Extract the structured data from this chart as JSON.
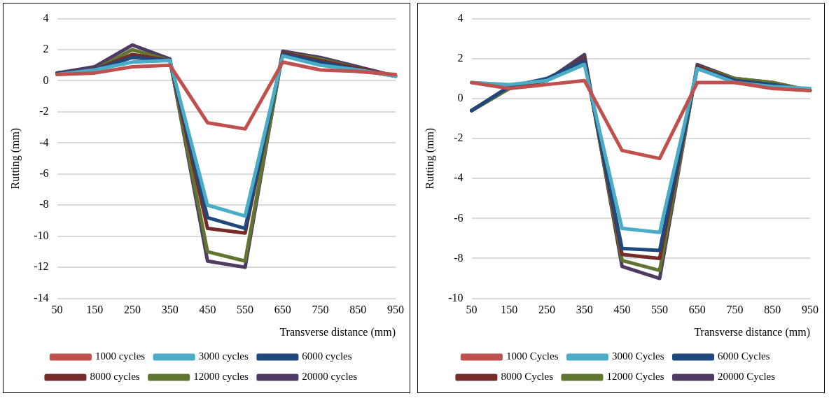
{
  "chart_data": [
    {
      "type": "line",
      "xlabel": "Transverse distance (mm)",
      "ylabel": "Rutting (mm)",
      "categories": [
        "50",
        "150",
        "250",
        "350",
        "450",
        "550",
        "650",
        "750",
        "850",
        "950"
      ],
      "ylim": [
        -14,
        4
      ],
      "yticks": [
        -14,
        -12,
        -10,
        -8,
        -6,
        -4,
        -2,
        0,
        2,
        4
      ],
      "grid": "y",
      "legend": "bottom",
      "marker": "none",
      "line_style": "solid",
      "series": [
        {
          "name": "1000 cycles",
          "color": "#c0504d",
          "values": [
            0.4,
            0.5,
            0.9,
            1.0,
            -2.7,
            -3.1,
            1.2,
            0.7,
            0.6,
            0.4
          ]
        },
        {
          "name": "3000 cycles",
          "color": "#4bacc6",
          "values": [
            0.4,
            0.7,
            1.2,
            1.3,
            -8.0,
            -8.7,
            1.6,
            1.0,
            0.7,
            0.3
          ]
        },
        {
          "name": "6000 cycles",
          "color": "#1f497d",
          "values": [
            0.5,
            0.7,
            1.5,
            1.3,
            -8.8,
            -9.5,
            1.7,
            1.2,
            0.7,
            0.3
          ]
        },
        {
          "name": "8000 cycles",
          "color": "#772c2a",
          "values": [
            0.5,
            0.7,
            1.7,
            1.3,
            -9.5,
            -9.8,
            1.8,
            1.3,
            0.8,
            0.3
          ]
        },
        {
          "name": "12000 cycles",
          "color": "#5f7530",
          "values": [
            0.5,
            0.7,
            2.0,
            1.3,
            -11.0,
            -11.6,
            1.8,
            1.4,
            0.8,
            0.3
          ]
        },
        {
          "name": "20000 cycles",
          "color": "#4f3b62",
          "values": [
            0.5,
            0.9,
            2.3,
            1.4,
            -11.6,
            -12.0,
            1.9,
            1.5,
            0.9,
            0.3
          ]
        }
      ]
    },
    {
      "type": "line",
      "xlabel": "Transverse distance (mm)",
      "ylabel": "Rutting (mm)",
      "categories": [
        "50",
        "150",
        "250",
        "350",
        "450",
        "550",
        "650",
        "750",
        "850",
        "950"
      ],
      "ylim": [
        -10,
        4
      ],
      "yticks": [
        -10,
        -8,
        -6,
        -4,
        -2,
        0,
        2,
        4
      ],
      "grid": "y",
      "legend": "bottom",
      "marker": "none",
      "line_style": "solid",
      "series": [
        {
          "name": "1000 Cycles",
          "color": "#c0504d",
          "values": [
            0.8,
            0.5,
            0.7,
            0.9,
            -2.6,
            -3.0,
            0.8,
            0.8,
            0.5,
            0.4
          ]
        },
        {
          "name": "3000 Cycles",
          "color": "#4bacc6",
          "values": [
            0.8,
            0.7,
            0.9,
            1.7,
            -6.5,
            -6.7,
            1.5,
            0.8,
            0.6,
            0.5
          ]
        },
        {
          "name": "6000 Cycles",
          "color": "#1f497d",
          "values": [
            -0.6,
            0.6,
            1.0,
            1.9,
            -7.5,
            -7.6,
            1.5,
            0.9,
            0.7,
            0.4
          ]
        },
        {
          "name": "8000 Cycles",
          "color": "#772c2a",
          "values": [
            -0.6,
            0.6,
            0.9,
            2.0,
            -7.8,
            -8.0,
            1.6,
            0.9,
            0.7,
            0.4
          ]
        },
        {
          "name": "12000 Cycles",
          "color": "#5f7530",
          "values": [
            -0.6,
            0.5,
            0.9,
            2.0,
            -8.1,
            -8.6,
            1.6,
            1.0,
            0.8,
            0.4
          ]
        },
        {
          "name": "20000 Cycles",
          "color": "#4f3b62",
          "values": [
            -0.6,
            0.5,
            0.9,
            2.2,
            -8.4,
            -9.0,
            1.7,
            1.0,
            0.8,
            0.4
          ]
        }
      ]
    }
  ]
}
